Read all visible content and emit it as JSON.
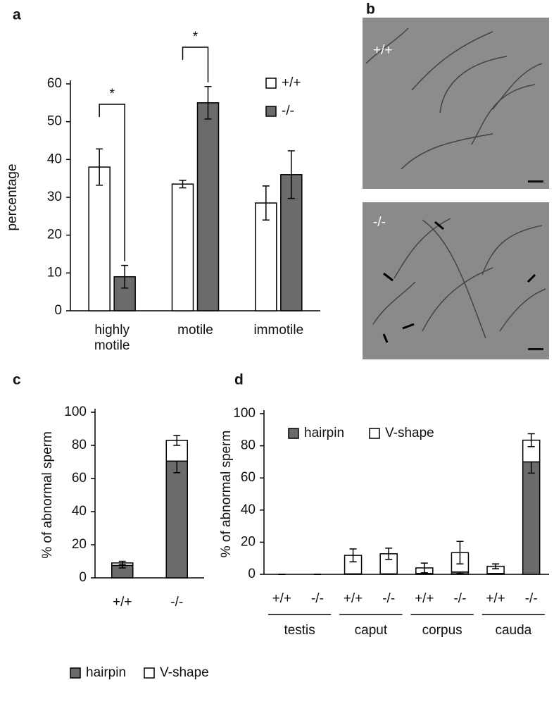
{
  "panel_labels": [
    "a",
    "b",
    "c",
    "d"
  ],
  "micrographs": [
    {
      "label": "+/+"
    },
    {
      "label": "-/-"
    }
  ],
  "chart_data": [
    {
      "type": "bar",
      "ylabel": "percentage",
      "categories": [
        "highly motile",
        "motile",
        "immotile"
      ],
      "series": [
        {
          "name": "+/+",
          "color": "#ffffff",
          "values": [
            38,
            33.5,
            28.5
          ],
          "errors": [
            4.8,
            1,
            4.5
          ]
        },
        {
          "name": "-/-",
          "color": "#6b6b6b",
          "values": [
            9,
            55,
            36
          ],
          "errors": [
            3,
            4.3,
            6.3
          ]
        }
      ],
      "ylim": [
        0,
        60
      ],
      "yticks": [
        0,
        10,
        20,
        30,
        40,
        50,
        60
      ],
      "annotations": [
        "*",
        "*"
      ],
      "legend": "upper right"
    },
    {
      "type": "bar",
      "stacked": true,
      "ylabel": "% of abnormal sperm",
      "categories": [
        "+/+",
        "-/-"
      ],
      "series": [
        {
          "name": "hairpin",
          "color": "#6b6b6b",
          "values": [
            7.5,
            70.5
          ],
          "errors": [
            1.5,
            7
          ]
        },
        {
          "name": "V-shape",
          "color": "#ffffff",
          "values": [
            1.5,
            12.5
          ],
          "errors": [
            1,
            3
          ]
        }
      ],
      "ylim": [
        0,
        100
      ],
      "yticks": [
        0,
        20,
        40,
        60,
        80,
        100
      ],
      "legend": "bottom"
    },
    {
      "type": "bar",
      "stacked": true,
      "ylabel": "% of abnormal sperm",
      "categories": [
        "+/+",
        "-/-",
        "+/+",
        "-/-",
        "+/+",
        "-/-",
        "+/+",
        "-/-"
      ],
      "groups": [
        "testis",
        "caput",
        "corpus",
        "cauda"
      ],
      "series": [
        {
          "name": "hairpin",
          "color": "#6b6b6b",
          "values": [
            0,
            0,
            0.3,
            0.3,
            0.5,
            1.5,
            0.5,
            70
          ],
          "errors": [
            0,
            0,
            0,
            0,
            0,
            1,
            0,
            7
          ]
        },
        {
          "name": "V-shape",
          "color": "#ffffff",
          "values": [
            0,
            0,
            11.5,
            12.5,
            3.5,
            12,
            4.5,
            13.5
          ],
          "errors": [
            0,
            0,
            4,
            3.5,
            3,
            7,
            1.5,
            4
          ]
        }
      ],
      "ylim": [
        0,
        100
      ],
      "yticks": [
        0,
        20,
        40,
        60,
        80,
        100
      ],
      "legend": "upper left"
    }
  ]
}
